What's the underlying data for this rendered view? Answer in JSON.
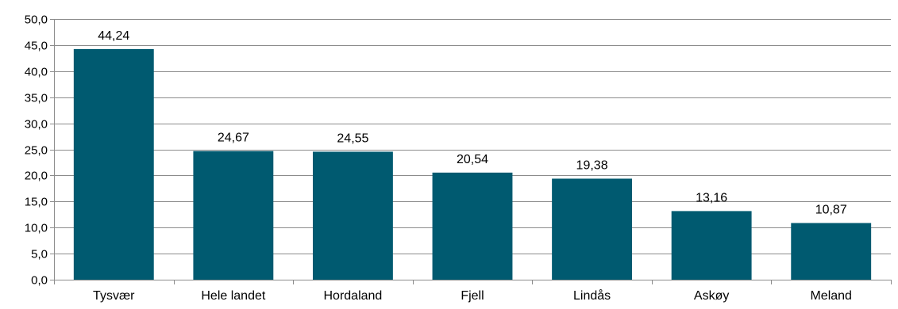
{
  "chart_data": {
    "type": "bar",
    "categories": [
      "Tysvær",
      "Hele landet",
      "Hordaland",
      "Fjell",
      "Lindås",
      "Askøy",
      "Meland"
    ],
    "values": [
      44.24,
      24.67,
      24.55,
      20.54,
      19.38,
      13.16,
      10.87
    ],
    "data_labels": [
      "44,24",
      "24,67",
      "24,55",
      "20,54",
      "19,38",
      "13,16",
      "10,87"
    ],
    "y_ticks": [
      "0,0",
      "5,0",
      "10,0",
      "15,0",
      "20,0",
      "25,0",
      "30,0",
      "35,0",
      "40,0",
      "45,0",
      "50,0"
    ],
    "ylim": [
      0,
      50
    ],
    "y_step": 5,
    "grid": true,
    "legend": "none",
    "title": "",
    "xlabel": "",
    "ylabel": "",
    "colors": {
      "bar": "#005a70",
      "grid": "#8c8c8c",
      "text": "#000000"
    }
  }
}
